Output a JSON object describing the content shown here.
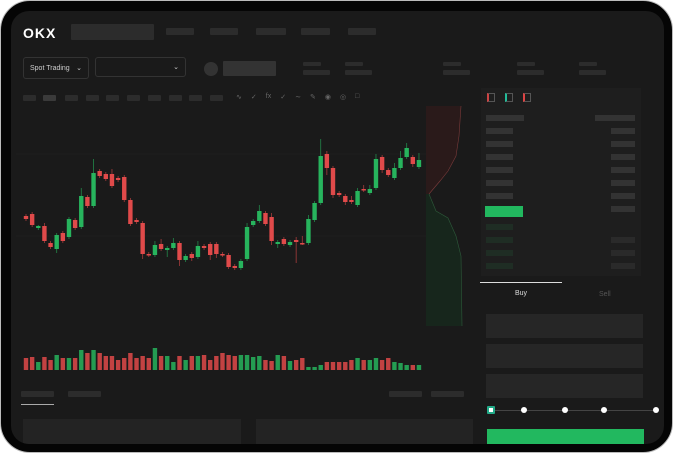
{
  "header": {
    "logo": "OKX",
    "nav_items": 5
  },
  "controls": {
    "market_select": "Spot Trading",
    "pair_select": ""
  },
  "toolbar": {
    "icons": [
      "indicator-icon",
      "check-icon",
      "fx-icon",
      "check-icon",
      "line-icon",
      "pencil-icon",
      "camera-icon",
      "target-icon",
      "expand-icon"
    ]
  },
  "orderbook": {
    "view_icons": [
      "both-sides-icon",
      "bids-icon",
      "asks-icon"
    ]
  },
  "trade": {
    "tabs": [
      "Buy",
      "Sell"
    ],
    "active_tab": "Buy",
    "slider_percent": 0,
    "slider_stops": 5
  },
  "colors": {
    "up": "#27b45d",
    "down": "#e04a4a",
    "background": "#1a1a1a",
    "accent": "#22b85f"
  },
  "chart_data": {
    "type": "candlestick",
    "title": "",
    "xlabel": "",
    "ylabel": "",
    "candles": [
      [
        95,
        97,
        90,
        92
      ],
      [
        97,
        99,
        84,
        86
      ],
      [
        83,
        86,
        81,
        85
      ],
      [
        85,
        88,
        68,
        70
      ],
      [
        68,
        70,
        62,
        64
      ],
      [
        62,
        78,
        58,
        76
      ],
      [
        78,
        80,
        68,
        70
      ],
      [
        74,
        94,
        72,
        92
      ],
      [
        91,
        93,
        81,
        83
      ],
      [
        84,
        123,
        82,
        115
      ],
      [
        114,
        116,
        103,
        105
      ],
      [
        105,
        152,
        103,
        138
      ],
      [
        140,
        142,
        133,
        135
      ],
      [
        137,
        139,
        130,
        132
      ],
      [
        137,
        142,
        123,
        125
      ],
      [
        133,
        135,
        129,
        131
      ],
      [
        134,
        136,
        109,
        111
      ],
      [
        111,
        113,
        85,
        87
      ],
      [
        91,
        93,
        87,
        89
      ],
      [
        88,
        90,
        52,
        57
      ],
      [
        57,
        59,
        54,
        56
      ],
      [
        56,
        70,
        54,
        66
      ],
      [
        67,
        72,
        60,
        62
      ],
      [
        61,
        65,
        54,
        63
      ],
      [
        63,
        73,
        61,
        68
      ],
      [
        68,
        70,
        45,
        51
      ],
      [
        51,
        57,
        49,
        55
      ],
      [
        57,
        59,
        50,
        53
      ],
      [
        54,
        70,
        52,
        65
      ],
      [
        65,
        67,
        61,
        63
      ],
      [
        67,
        69,
        51,
        56
      ],
      [
        67,
        69,
        53,
        57
      ],
      [
        57,
        59,
        54,
        56
      ],
      [
        56,
        58,
        42,
        44
      ],
      [
        45,
        47,
        41,
        43
      ],
      [
        43,
        52,
        41,
        50
      ],
      [
        52,
        88,
        50,
        84
      ],
      [
        86,
        92,
        84,
        90
      ],
      [
        90,
        106,
        88,
        100
      ],
      [
        98,
        100,
        85,
        87
      ],
      [
        94,
        98,
        66,
        70
      ],
      [
        67,
        71,
        63,
        69
      ],
      [
        72,
        74,
        65,
        67
      ],
      [
        66,
        71,
        64,
        69
      ],
      [
        71,
        74,
        48,
        69
      ],
      [
        68,
        75,
        66,
        67
      ],
      [
        68,
        96,
        66,
        92
      ],
      [
        91,
        110,
        89,
        108
      ],
      [
        108,
        172,
        106,
        155
      ],
      [
        157,
        160,
        136,
        143
      ],
      [
        143,
        145,
        113,
        116
      ],
      [
        118,
        120,
        114,
        116
      ],
      [
        115,
        117,
        106,
        109
      ],
      [
        111,
        115,
        107,
        109
      ],
      [
        106,
        123,
        104,
        120
      ],
      [
        122,
        126,
        119,
        121
      ],
      [
        118,
        126,
        116,
        122
      ],
      [
        123,
        157,
        121,
        152
      ],
      [
        154,
        156,
        138,
        141
      ],
      [
        141,
        143,
        134,
        136
      ],
      [
        133,
        148,
        131,
        143
      ],
      [
        143,
        160,
        141,
        153
      ],
      [
        154,
        168,
        152,
        163
      ],
      [
        154,
        156,
        144,
        147
      ],
      [
        144,
        158,
        142,
        151
      ]
    ],
    "volume": [
      12,
      13,
      8,
      13,
      10,
      15,
      12,
      12,
      12,
      20,
      17,
      20,
      17,
      14,
      14,
      10,
      12,
      17,
      12,
      14,
      12,
      22,
      14,
      14,
      8,
      14,
      10,
      14,
      14,
      15,
      10,
      14,
      17,
      15,
      14,
      15,
      15,
      13,
      14,
      10,
      9,
      15,
      14,
      9,
      10,
      12,
      3,
      3,
      5,
      8,
      8,
      8,
      8,
      10,
      12,
      10,
      10,
      12,
      10,
      12,
      8,
      7,
      5,
      5,
      5
    ]
  }
}
